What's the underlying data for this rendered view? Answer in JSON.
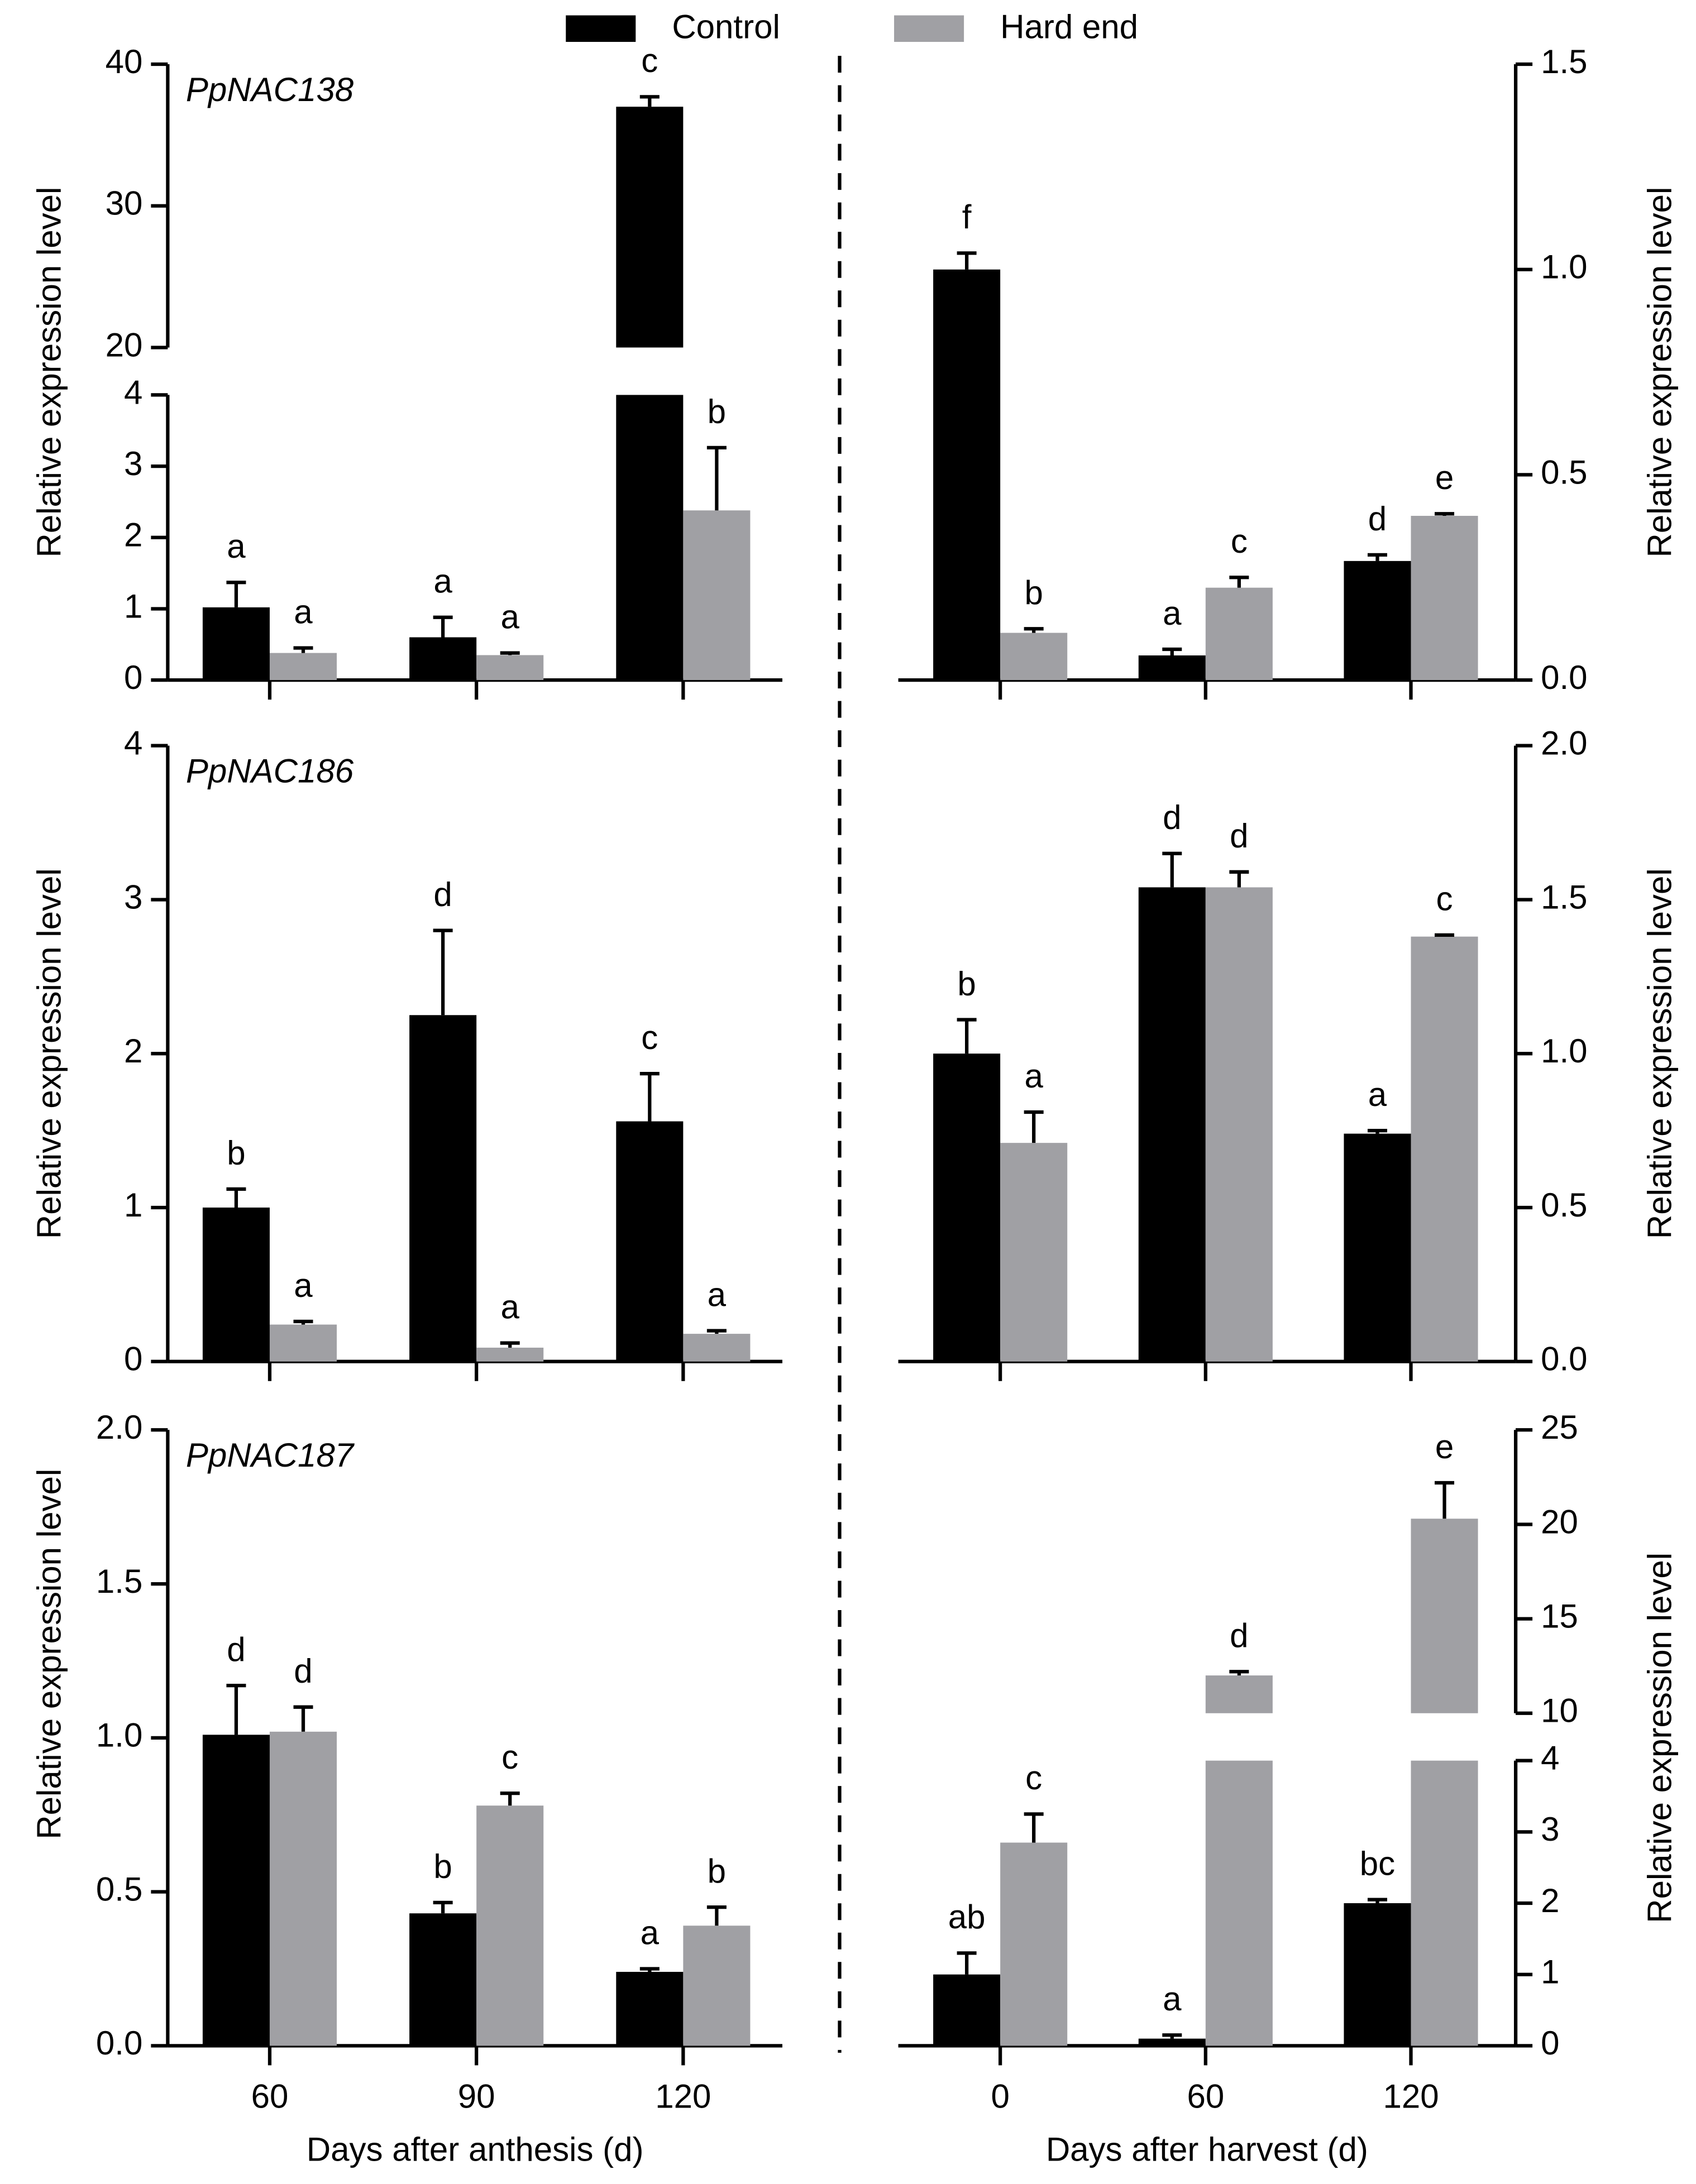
{
  "legend": [
    {
      "name": "Control",
      "color": "#000000"
    },
    {
      "name": "Hard end",
      "color": "#a0a0a4"
    }
  ],
  "chart_data": [
    {
      "type": "bar",
      "title": "PpNAC138",
      "ylabel": "Relative expression level",
      "ylim": [
        0,
        40
      ],
      "axis_break": [
        4,
        20
      ],
      "yticks": [
        0,
        1,
        2,
        3,
        4,
        20,
        30,
        40
      ],
      "series": [
        {
          "values": [
            1.02,
            0.6,
            37
          ],
          "errors": [
            0.35,
            0.28,
            0.7
          ],
          "letters": [
            "a",
            "a",
            "c"
          ]
        },
        {
          "values": [
            0.38,
            0.35,
            2.38
          ],
          "errors": [
            0.07,
            0.03,
            0.88
          ],
          "letters": [
            "a",
            "a",
            "b"
          ]
        }
      ]
    },
    {
      "type": "bar",
      "ylabel": "Relative expression level",
      "ylim": [
        0,
        1.5
      ],
      "yticks": [
        {
          "value": 0,
          "label": "0.0"
        },
        {
          "value": 0.5,
          "label": "0.5"
        },
        {
          "value": 1,
          "label": "1.0"
        },
        {
          "value": 1.5,
          "label": "1.5"
        }
      ],
      "series": [
        {
          "values": [
            1.0,
            0.06,
            0.29
          ],
          "errors": [
            0.04,
            0.015,
            0.015
          ],
          "letters": [
            "f",
            "a",
            "d"
          ]
        },
        {
          "values": [
            0.115,
            0.225,
            0.4
          ],
          "errors": [
            0.01,
            0.025,
            0.005
          ],
          "letters": [
            "b",
            "c",
            "e"
          ]
        }
      ]
    },
    {
      "type": "bar",
      "title": "PpNAC186",
      "ylabel": "Relative expression level",
      "ylim": [
        0,
        4
      ],
      "yticks": [
        0,
        1,
        2,
        3,
        4
      ],
      "series": [
        {
          "values": [
            1.0,
            2.25,
            1.56
          ],
          "errors": [
            0.12,
            0.55,
            0.31
          ],
          "letters": [
            "b",
            "d",
            "c"
          ]
        },
        {
          "values": [
            0.24,
            0.09,
            0.18
          ],
          "errors": [
            0.02,
            0.03,
            0.02
          ],
          "letters": [
            "a",
            "a",
            "a"
          ]
        }
      ]
    },
    {
      "type": "bar",
      "ylabel": "Relative expression level",
      "ylim": [
        0,
        2
      ],
      "yticks": [
        {
          "value": 0,
          "label": "0.0"
        },
        {
          "value": 0.5,
          "label": "0.5"
        },
        {
          "value": 1,
          "label": "1.0"
        },
        {
          "value": 1.5,
          "label": "1.5"
        },
        {
          "value": 2,
          "label": "2.0"
        }
      ],
      "series": [
        {
          "values": [
            1.0,
            1.54,
            0.74
          ],
          "errors": [
            0.11,
            0.11,
            0.01
          ],
          "letters": [
            "b",
            "d",
            "a"
          ]
        },
        {
          "values": [
            0.71,
            1.54,
            1.38
          ],
          "errors": [
            0.1,
            0.05,
            0.005
          ],
          "letters": [
            "a",
            "d",
            "c"
          ]
        }
      ]
    },
    {
      "type": "bar",
      "title": "PpNAC187",
      "ylabel": "Relative expression level",
      "xlabel": "Days after anthesis (d)",
      "categories": [
        "60",
        "90",
        "120"
      ],
      "ylim": [
        0,
        2
      ],
      "yticks": [
        {
          "value": 0,
          "label": "0.0"
        },
        {
          "value": 0.5,
          "label": "0.5"
        },
        {
          "value": 1,
          "label": "1.0"
        },
        {
          "value": 1.5,
          "label": "1.5"
        },
        {
          "value": 2,
          "label": "2.0"
        }
      ],
      "series": [
        {
          "values": [
            1.01,
            0.43,
            0.24
          ],
          "errors": [
            0.16,
            0.035,
            0.01
          ],
          "letters": [
            "d",
            "b",
            "a"
          ]
        },
        {
          "values": [
            1.02,
            0.78,
            0.39
          ],
          "errors": [
            0.08,
            0.04,
            0.06
          ],
          "letters": [
            "d",
            "c",
            "b"
          ]
        }
      ]
    },
    {
      "type": "bar",
      "ylabel": "Relative expression level",
      "xlabel": "Days after harvest (d)",
      "categories": [
        "0",
        "60",
        "120"
      ],
      "ylim": [
        0,
        25
      ],
      "axis_break": [
        4,
        10
      ],
      "yticks": [
        0,
        1,
        2,
        3,
        4,
        10,
        15,
        20,
        25
      ],
      "series": [
        {
          "values": [
            1.0,
            0.1,
            2.0
          ],
          "errors": [
            0.3,
            0.05,
            0.05
          ],
          "letters": [
            "ab",
            "a",
            "bc"
          ]
        },
        {
          "values": [
            2.85,
            12.0,
            20.3
          ],
          "errors": [
            0.4,
            0.2,
            1.9
          ],
          "letters": [
            "c",
            "d",
            "e"
          ]
        }
      ]
    }
  ]
}
